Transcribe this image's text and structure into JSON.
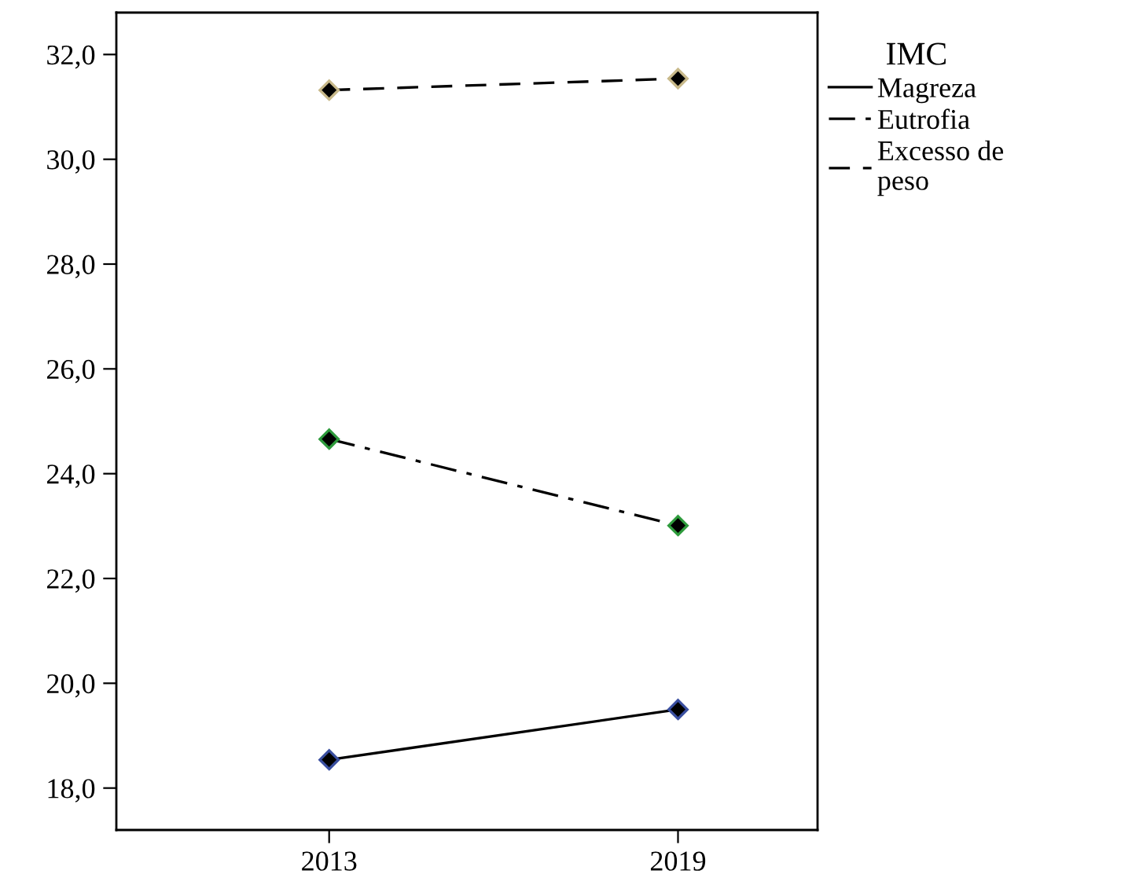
{
  "chart_data": {
    "type": "line",
    "legend_title": "IMC",
    "legend": "right",
    "marker": "diamond",
    "grid": false,
    "categories": [
      "2013",
      "2019"
    ],
    "series": [
      {
        "name": "Magreza",
        "color": "#3a4fa0",
        "line_style": "solid",
        "values": [
          18.54,
          19.5
        ]
      },
      {
        "name": "Eutrofia",
        "color": "#2e9b3c",
        "line_style": "dashdot",
        "values": [
          24.66,
          23.01
        ]
      },
      {
        "name": "Excesso de\npeso",
        "color": "#c8b98a",
        "line_style": "dashed",
        "values": [
          31.32,
          31.54
        ]
      }
    ],
    "ylim": [
      17.2,
      32.8
    ],
    "yticks": [
      {
        "value": 18,
        "label": "18,0"
      },
      {
        "value": 20,
        "label": "20,0"
      },
      {
        "value": 22,
        "label": "22,0"
      },
      {
        "value": 24,
        "label": "24,0"
      },
      {
        "value": 26,
        "label": "26,0"
      },
      {
        "value": 28,
        "label": "28,0"
      },
      {
        "value": 30,
        "label": "30,0"
      },
      {
        "value": 32,
        "label": "32,0"
      }
    ]
  }
}
